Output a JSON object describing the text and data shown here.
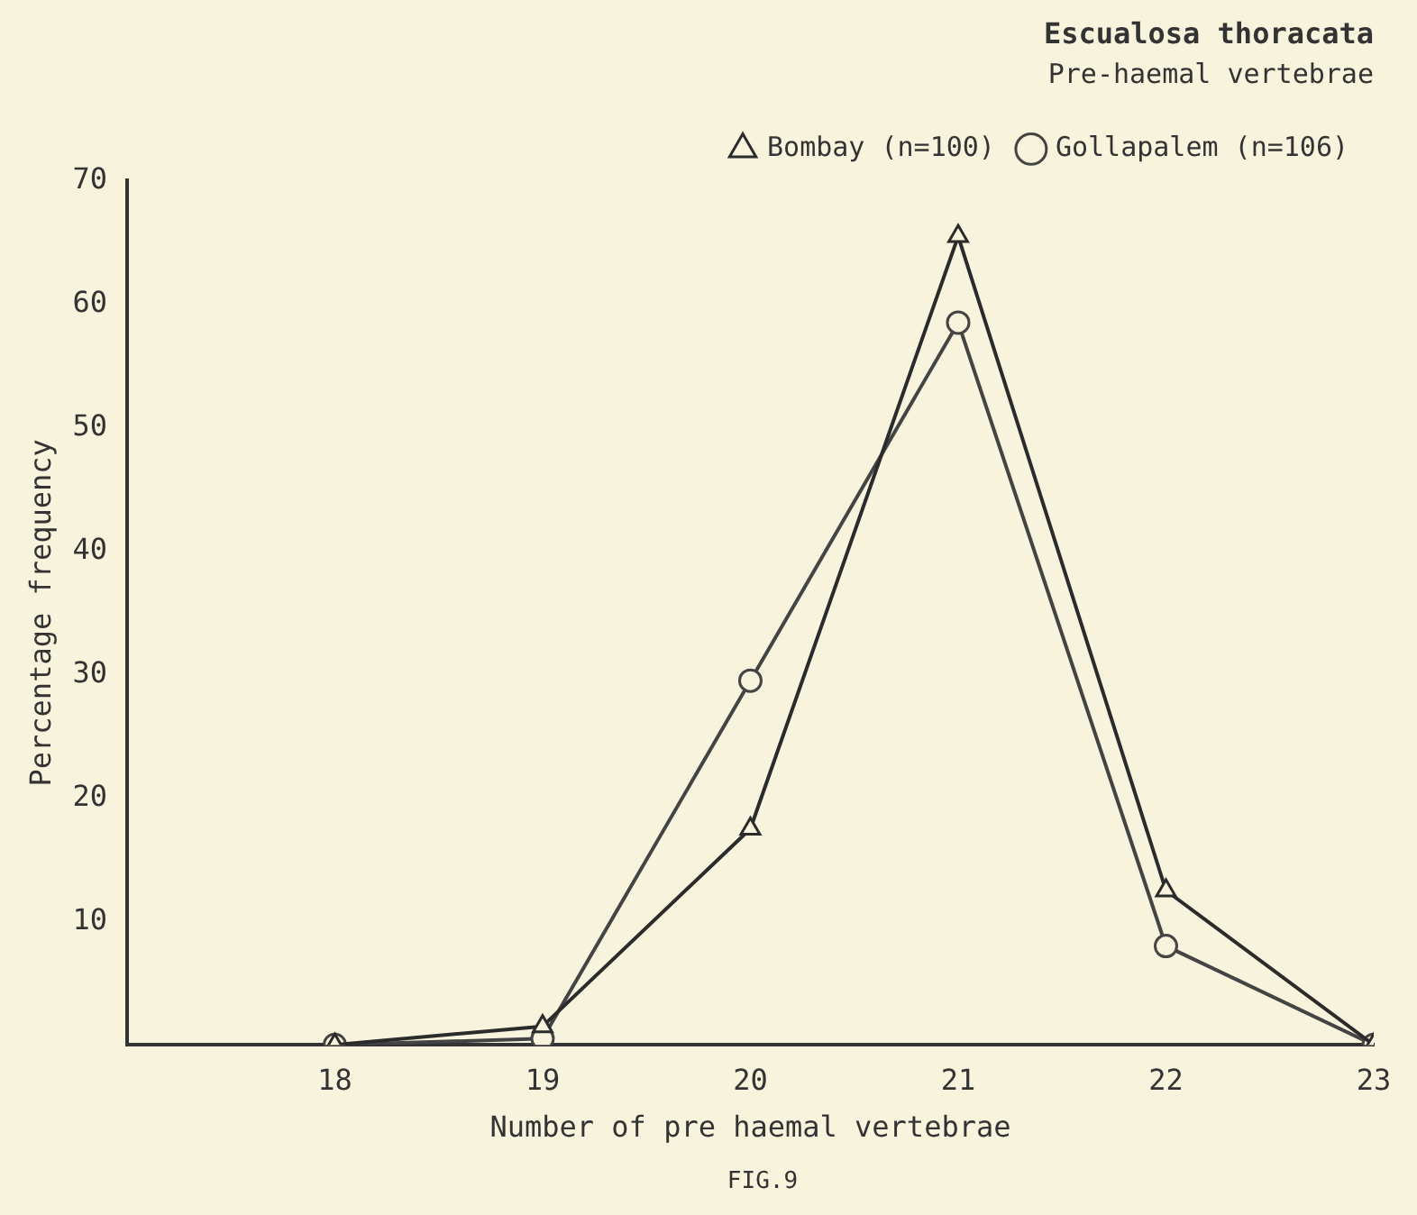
{
  "chart_data": {
    "type": "line",
    "title": "Escualosa thoracata",
    "subtitle": "Pre-haemal vertebrae",
    "xlabel": "Number of pre haemal vertebrae",
    "ylabel": "Percentage frequency",
    "annotations": [
      "FIG.9"
    ],
    "x": [
      18,
      19,
      20,
      21,
      22,
      23
    ],
    "xlim": [
      17,
      23
    ],
    "xticks": [
      18,
      19,
      20,
      21,
      22,
      23
    ],
    "ylim": [
      0,
      70
    ],
    "yticks": [
      10,
      20,
      30,
      40,
      50,
      60,
      70
    ],
    "series": [
      {
        "name": "Bombay (n=100)",
        "color": "#2b2b2b",
        "marker": "triangle",
        "values": [
          0,
          1.5,
          17.5,
          65.5,
          12.5,
          0
        ]
      },
      {
        "name": "Gollapalem (n=106)",
        "color": "#444444",
        "marker": "circle",
        "values": [
          0,
          0.5,
          29.5,
          58.5,
          8,
          0
        ]
      }
    ],
    "grid": false,
    "legend": "top right",
    "line_style": "solid"
  }
}
